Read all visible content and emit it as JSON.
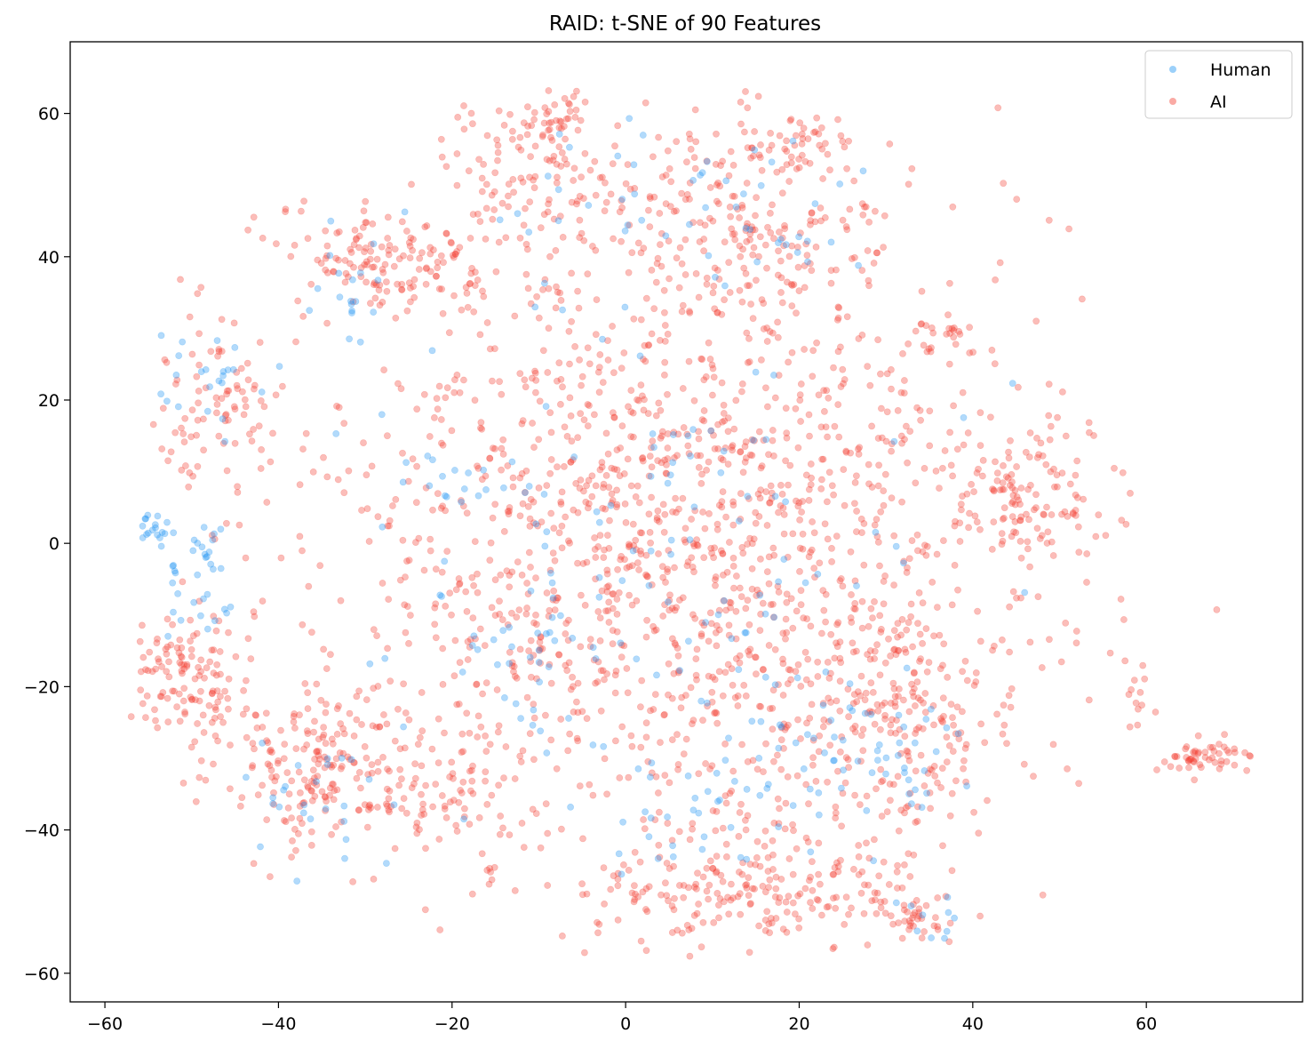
{
  "chart_data": {
    "type": "scatter",
    "title": "RAID: t-SNE of 90 Features",
    "xlabel": "",
    "ylabel": "",
    "xlim": [
      -64,
      78
    ],
    "ylim": [
      -64,
      70
    ],
    "x_ticks": [
      -60,
      -40,
      -20,
      0,
      20,
      40,
      60
    ],
    "y_ticks": [
      -60,
      -40,
      -20,
      0,
      20,
      40,
      60
    ],
    "x_tick_labels": [
      "−60",
      "−40",
      "−20",
      "0",
      "20",
      "40",
      "60"
    ],
    "y_tick_labels": [
      "−60",
      "−40",
      "−20",
      "0",
      "20",
      "40",
      "60"
    ],
    "grid": false,
    "legend_position": "top-right",
    "series": [
      {
        "name": "Human",
        "color": "#2196f3",
        "opacity": 0.35,
        "clusters": [
          {
            "cx": -54,
            "cy": 2,
            "sx": 1.5,
            "sy": 1.0,
            "n": 18
          },
          {
            "cx": -50,
            "cy": -1,
            "sx": 2.0,
            "sy": 2.0,
            "n": 20
          },
          {
            "cx": -49,
            "cy": -9,
            "sx": 2.0,
            "sy": 2.0,
            "n": 14
          },
          {
            "cx": -49,
            "cy": 24,
            "sx": 3.0,
            "sy": 4.0,
            "n": 22
          },
          {
            "cx": -35,
            "cy": -36,
            "sx": 3.5,
            "sy": 4.0,
            "n": 26
          },
          {
            "cx": -30,
            "cy": 36,
            "sx": 3.0,
            "sy": 4.0,
            "n": 18
          },
          {
            "cx": -18,
            "cy": 8,
            "sx": 3.0,
            "sy": 3.0,
            "n": 12
          },
          {
            "cx": -12,
            "cy": -14,
            "sx": 4.0,
            "sy": 4.0,
            "n": 28
          },
          {
            "cx": -2,
            "cy": 50,
            "sx": 8.0,
            "sy": 4.0,
            "n": 20
          },
          {
            "cx": 8,
            "cy": -38,
            "sx": 6.0,
            "sy": 5.0,
            "n": 34
          },
          {
            "cx": 15,
            "cy": 45,
            "sx": 7.0,
            "sy": 6.0,
            "n": 28
          },
          {
            "cx": 25,
            "cy": -25,
            "sx": 6.0,
            "sy": 6.0,
            "n": 30
          },
          {
            "cx": 35,
            "cy": -30,
            "sx": 5.0,
            "sy": 4.0,
            "n": 22
          },
          {
            "cx": 35,
            "cy": -53,
            "sx": 2.0,
            "sy": 2.0,
            "n": 10
          },
          {
            "cx": 5,
            "cy": 0,
            "sx": 18.0,
            "sy": 18.0,
            "n": 120
          }
        ]
      },
      {
        "name": "AI",
        "color": "#f44336",
        "opacity": 0.35,
        "clusters": [
          {
            "cx": -51,
            "cy": -18,
            "sx": 4.0,
            "sy": 5.0,
            "n": 130
          },
          {
            "cx": -34,
            "cy": -31,
            "sx": 6.0,
            "sy": 6.0,
            "n": 190
          },
          {
            "cx": -47,
            "cy": 20,
            "sx": 4.0,
            "sy": 6.0,
            "n": 80
          },
          {
            "cx": -30,
            "cy": 40,
            "sx": 5.0,
            "sy": 3.5,
            "n": 90
          },
          {
            "cx": -22,
            "cy": 38,
            "sx": 4.0,
            "sy": 4.0,
            "n": 60
          },
          {
            "cx": -10,
            "cy": 52,
            "sx": 6.0,
            "sy": 5.0,
            "n": 120
          },
          {
            "cx": -8,
            "cy": 60,
            "sx": 2.0,
            "sy": 2.0,
            "n": 25
          },
          {
            "cx": 15,
            "cy": 45,
            "sx": 8.0,
            "sy": 7.0,
            "n": 190
          },
          {
            "cx": 20,
            "cy": 56,
            "sx": 4.0,
            "sy": 2.0,
            "n": 40
          },
          {
            "cx": 46,
            "cy": 6,
            "sx": 4.0,
            "sy": 5.0,
            "n": 110
          },
          {
            "cx": 37,
            "cy": 28,
            "sx": 2.5,
            "sy": 2.0,
            "n": 25
          },
          {
            "cx": 15,
            "cy": -48,
            "sx": 9.0,
            "sy": 4.0,
            "n": 200
          },
          {
            "cx": 33,
            "cy": -52,
            "sx": 3.0,
            "sy": 2.0,
            "n": 40
          },
          {
            "cx": 67,
            "cy": -30,
            "sx": 3.0,
            "sy": 1.0,
            "n": 55
          },
          {
            "cx": 59,
            "cy": -22,
            "sx": 1.2,
            "sy": 3.0,
            "n": 12
          },
          {
            "cx": 32,
            "cy": -25,
            "sx": 7.0,
            "sy": 8.0,
            "n": 200
          },
          {
            "cx": -16,
            "cy": -47,
            "sx": 1.0,
            "sy": 2.0,
            "n": 8
          },
          {
            "cx": -19,
            "cy": -34,
            "sx": 2.0,
            "sy": 3.0,
            "n": 30
          },
          {
            "cx": -24,
            "cy": -36,
            "sx": 2.0,
            "sy": 2.0,
            "n": 20
          },
          {
            "cx": 5,
            "cy": 0,
            "sx": 20.0,
            "sy": 22.0,
            "n": 1500
          }
        ]
      }
    ]
  }
}
